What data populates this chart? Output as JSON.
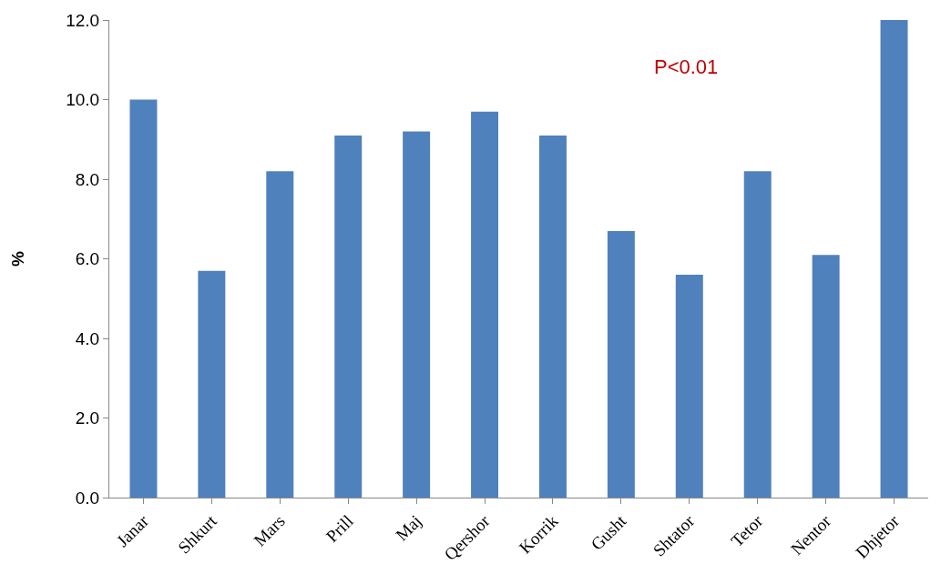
{
  "chart_data": {
    "type": "bar",
    "ylabel": "%",
    "categories": [
      "Janar",
      "Shkurt",
      "Mars",
      "Prill",
      "Maj",
      "Qershor",
      "Korrik",
      "Gusht",
      "Shtator",
      "Tetor",
      "Nentor",
      "Dhjetor"
    ],
    "values": [
      10.0,
      5.7,
      8.2,
      9.1,
      9.2,
      9.7,
      9.1,
      6.7,
      5.6,
      8.2,
      6.1,
      12.0
    ],
    "color": "#4f81bd",
    "ylim": [
      0,
      12
    ],
    "yticks": [
      {
        "value": 0,
        "label": "0.0"
      },
      {
        "value": 2,
        "label": "2.0"
      },
      {
        "value": 4,
        "label": "4.0"
      },
      {
        "value": 6,
        "label": "6.0"
      },
      {
        "value": 8,
        "label": "8.0"
      },
      {
        "value": 10,
        "label": "10.0"
      },
      {
        "value": 12,
        "label": "12.0"
      }
    ],
    "annotations": [
      "P<0.01"
    ]
  }
}
